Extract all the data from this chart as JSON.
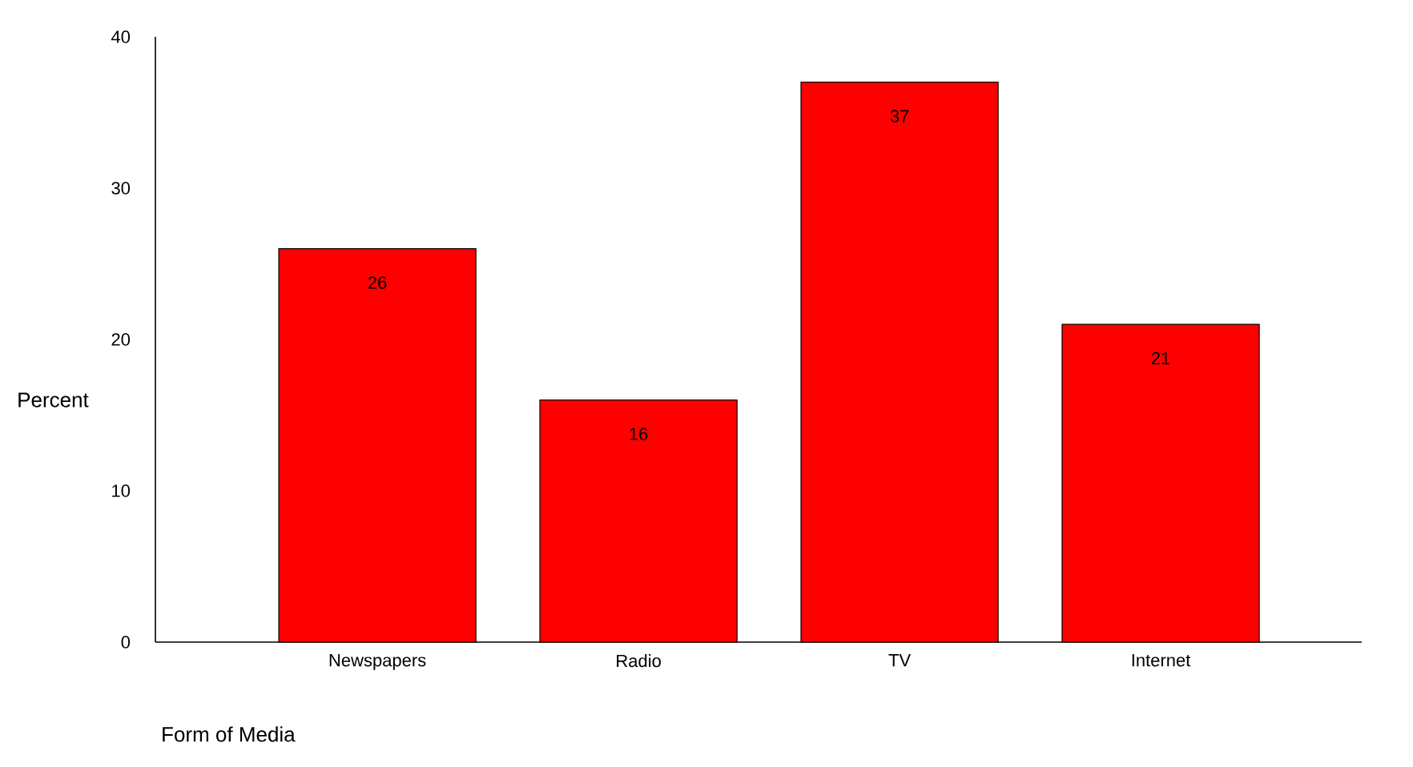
{
  "chart_data": {
    "type": "bar",
    "xlabel": "Form of Media",
    "ylabel": "Percent",
    "categories": [
      "Newspapers",
      "Radio",
      "TV",
      "Internet"
    ],
    "values": [
      26,
      16,
      37,
      21
    ],
    "color": "#ff0000",
    "ylim": [
      0,
      40
    ],
    "yticks": [
      0,
      10,
      20,
      30,
      40
    ],
    "data_labels": true
  }
}
